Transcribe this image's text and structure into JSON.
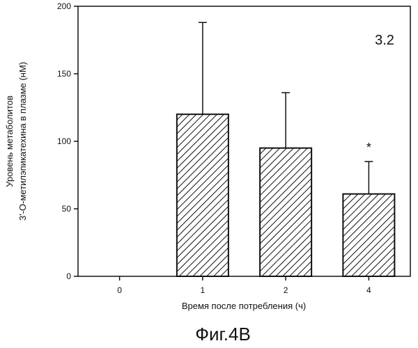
{
  "chart_data": {
    "type": "bar",
    "categories": [
      "0",
      "1",
      "2",
      "4"
    ],
    "values": [
      0,
      120,
      95,
      61
    ],
    "error_upper": [
      0,
      188,
      136,
      85
    ],
    "significance": [
      "",
      "",
      "",
      "*"
    ],
    "ylim": [
      0,
      200
    ],
    "yticks": [
      "0",
      "50",
      "100",
      "150",
      "200"
    ],
    "xlabel": "Время после потребления (ч)",
    "ylabel_lines": [
      "Уровень метаболитов",
      "3'-О-метилэпикатехина в плазме (нМ)"
    ],
    "annotation": "3.2",
    "bar_fill": "hatched"
  },
  "caption": "Фиг.4В"
}
